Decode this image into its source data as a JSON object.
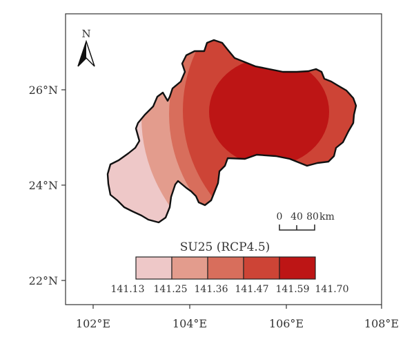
{
  "map": {
    "lon_ticks": [
      "102°E",
      "104°E",
      "106°E",
      "108°E"
    ],
    "lat_ticks": [
      "26°N",
      "24°N",
      "22°N"
    ],
    "north_label": "N",
    "scale_bar": {
      "labels": [
        "0",
        "40",
        "80"
      ],
      "unit": "km"
    },
    "legend": {
      "title": "SU25 (RCP4.5)",
      "breaks": [
        "141.13",
        "141.25",
        "141.36",
        "141.47",
        "141.59",
        "141.70"
      ],
      "colors": [
        "#eec8c8",
        "#e39c8d",
        "#d86e5c",
        "#cd4436",
        "#bd1515"
      ]
    },
    "outline_color": "#111111"
  }
}
